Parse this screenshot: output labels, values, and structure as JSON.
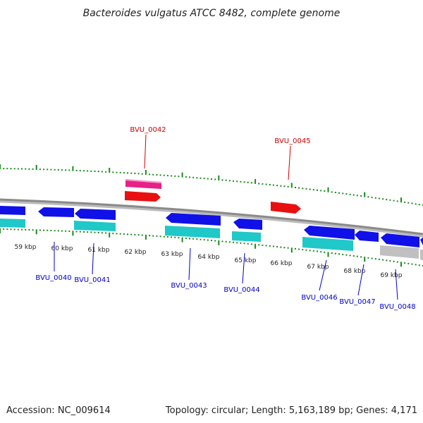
{
  "title": "Bacteroides vulgatus ATCC 8482, complete genome",
  "footer": {
    "accession": "Accession: NC_009614",
    "topology": "Topology: circular; Length: 5,163,189 bp; Genes: 4,171"
  },
  "colors": {
    "backbone": "#8a8a8a",
    "tick": "#1a8a1a",
    "label_blue": "#0000cc",
    "label_red": "#cc0000",
    "gene_blue": "#1010e8",
    "gene_cyan": "#20c8c8",
    "gene_red": "#e81010",
    "gene_pink": "#e8208a",
    "gene_gray": "#c0c0c0"
  },
  "kbp_labels": [
    "59 kbp",
    "60 kbp",
    "61 kbp",
    "62 kbp",
    "63 kbp",
    "64 kbp",
    "65 kbp",
    "66 kbp",
    "67 kbp",
    "68 kbp",
    "69 kbp"
  ],
  "gene_labels": [
    {
      "text": "BVU_0040",
      "color": "blue"
    },
    {
      "text": "BVU_0041",
      "color": "blue"
    },
    {
      "text": "BVU_0042",
      "color": "red"
    },
    {
      "text": "BVU_0043",
      "color": "blue"
    },
    {
      "text": "BVU_0044",
      "color": "blue"
    },
    {
      "text": "BVU_0045",
      "color": "red"
    },
    {
      "text": "BVU_0046",
      "color": "blue"
    },
    {
      "text": "BVU_0047",
      "color": "blue"
    },
    {
      "text": "BVU_0048",
      "color": "blue"
    }
  ]
}
